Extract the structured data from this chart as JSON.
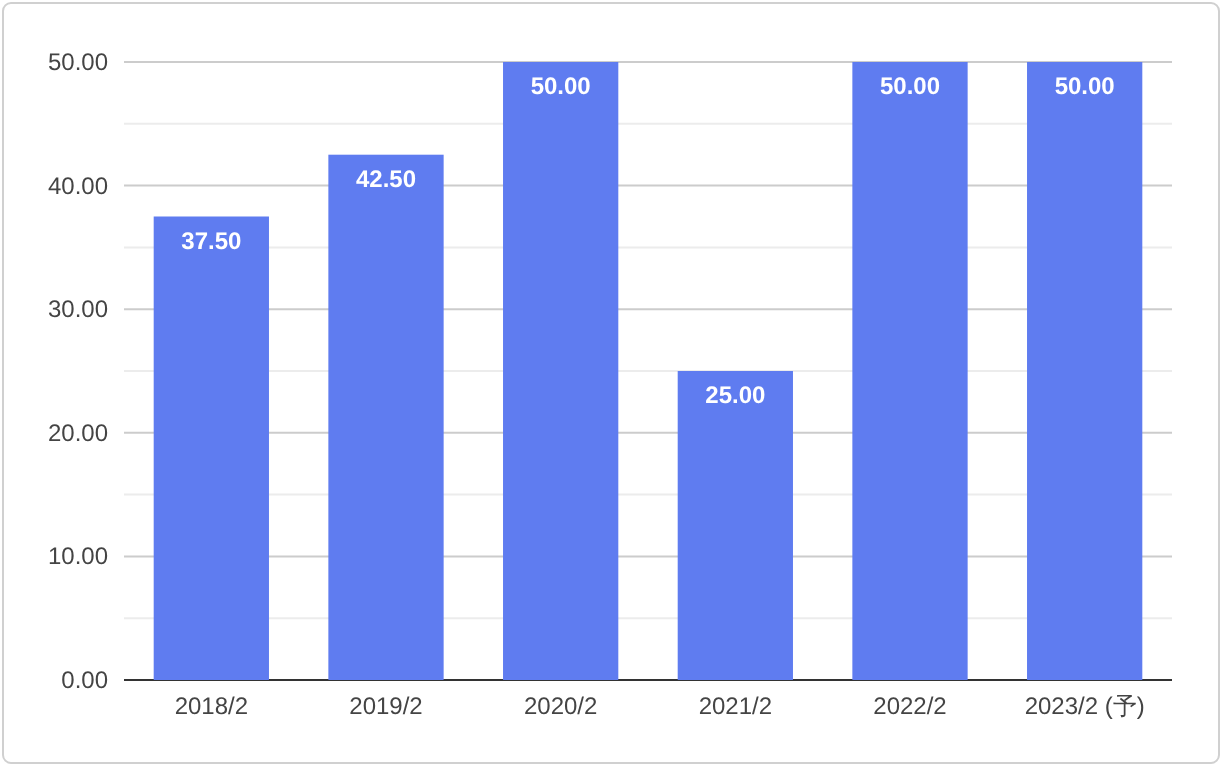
{
  "chart_data": {
    "type": "bar",
    "categories": [
      "2018/2",
      "2019/2",
      "2020/2",
      "2021/2",
      "2022/2",
      "2023/2 (予)"
    ],
    "values": [
      37.5,
      42.5,
      50,
      25,
      50,
      50
    ],
    "color": "#5f7cf0",
    "ylim": [
      0,
      50
    ],
    "yticks": [
      {
        "value": 0,
        "label": "0.00"
      },
      {
        "value": 5,
        "label": null
      },
      {
        "value": 10,
        "label": "10.00"
      },
      {
        "value": 15,
        "label": null
      },
      {
        "value": 20,
        "label": "20.00"
      },
      {
        "value": 25,
        "label": null
      },
      {
        "value": 30,
        "label": "30.00"
      },
      {
        "value": 35,
        "label": null
      },
      {
        "value": 40,
        "label": "40.00"
      },
      {
        "value": 45,
        "label": null
      },
      {
        "value": 50,
        "label": "50.00"
      }
    ],
    "grid": "y",
    "value_labels": [
      "37.50",
      "42.50",
      "50.00",
      "25.00",
      "50.00",
      "50.00"
    ]
  }
}
